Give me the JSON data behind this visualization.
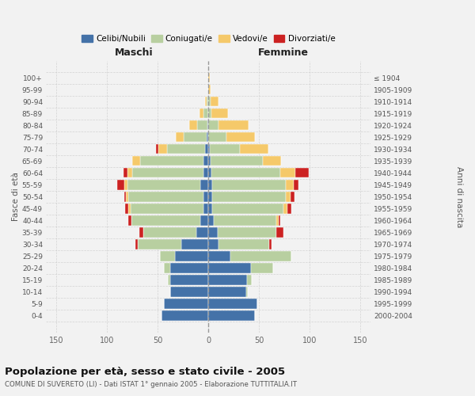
{
  "age_groups": [
    "0-4",
    "5-9",
    "10-14",
    "15-19",
    "20-24",
    "25-29",
    "30-34",
    "35-39",
    "40-44",
    "45-49",
    "50-54",
    "55-59",
    "60-64",
    "65-69",
    "70-74",
    "75-79",
    "80-84",
    "85-89",
    "90-94",
    "95-99",
    "100+"
  ],
  "birth_years": [
    "2000-2004",
    "1995-1999",
    "1990-1994",
    "1985-1989",
    "1980-1984",
    "1975-1979",
    "1970-1974",
    "1965-1969",
    "1960-1964",
    "1955-1959",
    "1950-1954",
    "1945-1949",
    "1940-1944",
    "1935-1939",
    "1930-1934",
    "1925-1929",
    "1920-1924",
    "1915-1919",
    "1910-1914",
    "1905-1909",
    "≤ 1904"
  ],
  "colors": {
    "celibi": "#4472a8",
    "coniugati": "#b8cfa0",
    "vedovi": "#f5c96a",
    "divorziati": "#cc2222"
  },
  "maschi": {
    "celibi": [
      46,
      44,
      38,
      38,
      38,
      33,
      27,
      12,
      8,
      5,
      5,
      8,
      5,
      5,
      3,
      2,
      1,
      0,
      0,
      0,
      0
    ],
    "coniugati": [
      0,
      0,
      0,
      2,
      6,
      15,
      43,
      52,
      68,
      72,
      74,
      72,
      70,
      62,
      38,
      22,
      10,
      5,
      2,
      0,
      0
    ],
    "vedovi": [
      0,
      0,
      0,
      0,
      0,
      0,
      0,
      0,
      0,
      2,
      2,
      3,
      5,
      8,
      8,
      8,
      8,
      4,
      1,
      0,
      0
    ],
    "divorziati": [
      0,
      0,
      0,
      0,
      0,
      0,
      2,
      4,
      3,
      3,
      2,
      7,
      4,
      0,
      3,
      0,
      0,
      0,
      0,
      0,
      0
    ]
  },
  "femmine": {
    "celibi": [
      46,
      48,
      37,
      38,
      42,
      22,
      10,
      9,
      5,
      4,
      4,
      4,
      3,
      2,
      1,
      0,
      0,
      0,
      0,
      0,
      0
    ],
    "coniugati": [
      0,
      0,
      2,
      5,
      22,
      60,
      50,
      58,
      62,
      70,
      72,
      72,
      68,
      52,
      30,
      18,
      10,
      3,
      2,
      0,
      0
    ],
    "vedovi": [
      0,
      0,
      0,
      0,
      0,
      0,
      0,
      0,
      2,
      4,
      5,
      8,
      15,
      18,
      28,
      28,
      30,
      16,
      8,
      2,
      1
    ],
    "divorziati": [
      0,
      0,
      0,
      0,
      0,
      0,
      2,
      7,
      2,
      4,
      4,
      5,
      13,
      0,
      0,
      0,
      0,
      0,
      0,
      0,
      0
    ]
  },
  "xlim": 160,
  "title": "Popolazione per età, sesso e stato civile - 2005",
  "subtitle": "COMUNE DI SUVERETO (LI) - Dati ISTAT 1° gennaio 2005 - Elaborazione TUTTITALIA.IT",
  "ylabel_left": "Fasce di età",
  "ylabel_right": "Anni di nascita",
  "xlabel_left": "Maschi",
  "xlabel_right": "Femmine",
  "legend_labels": [
    "Celibi/Nubili",
    "Coniugati/e",
    "Vedovi/e",
    "Divorziati/e"
  ],
  "background_color": "#f2f2f2",
  "grid_color": "#cccccc"
}
